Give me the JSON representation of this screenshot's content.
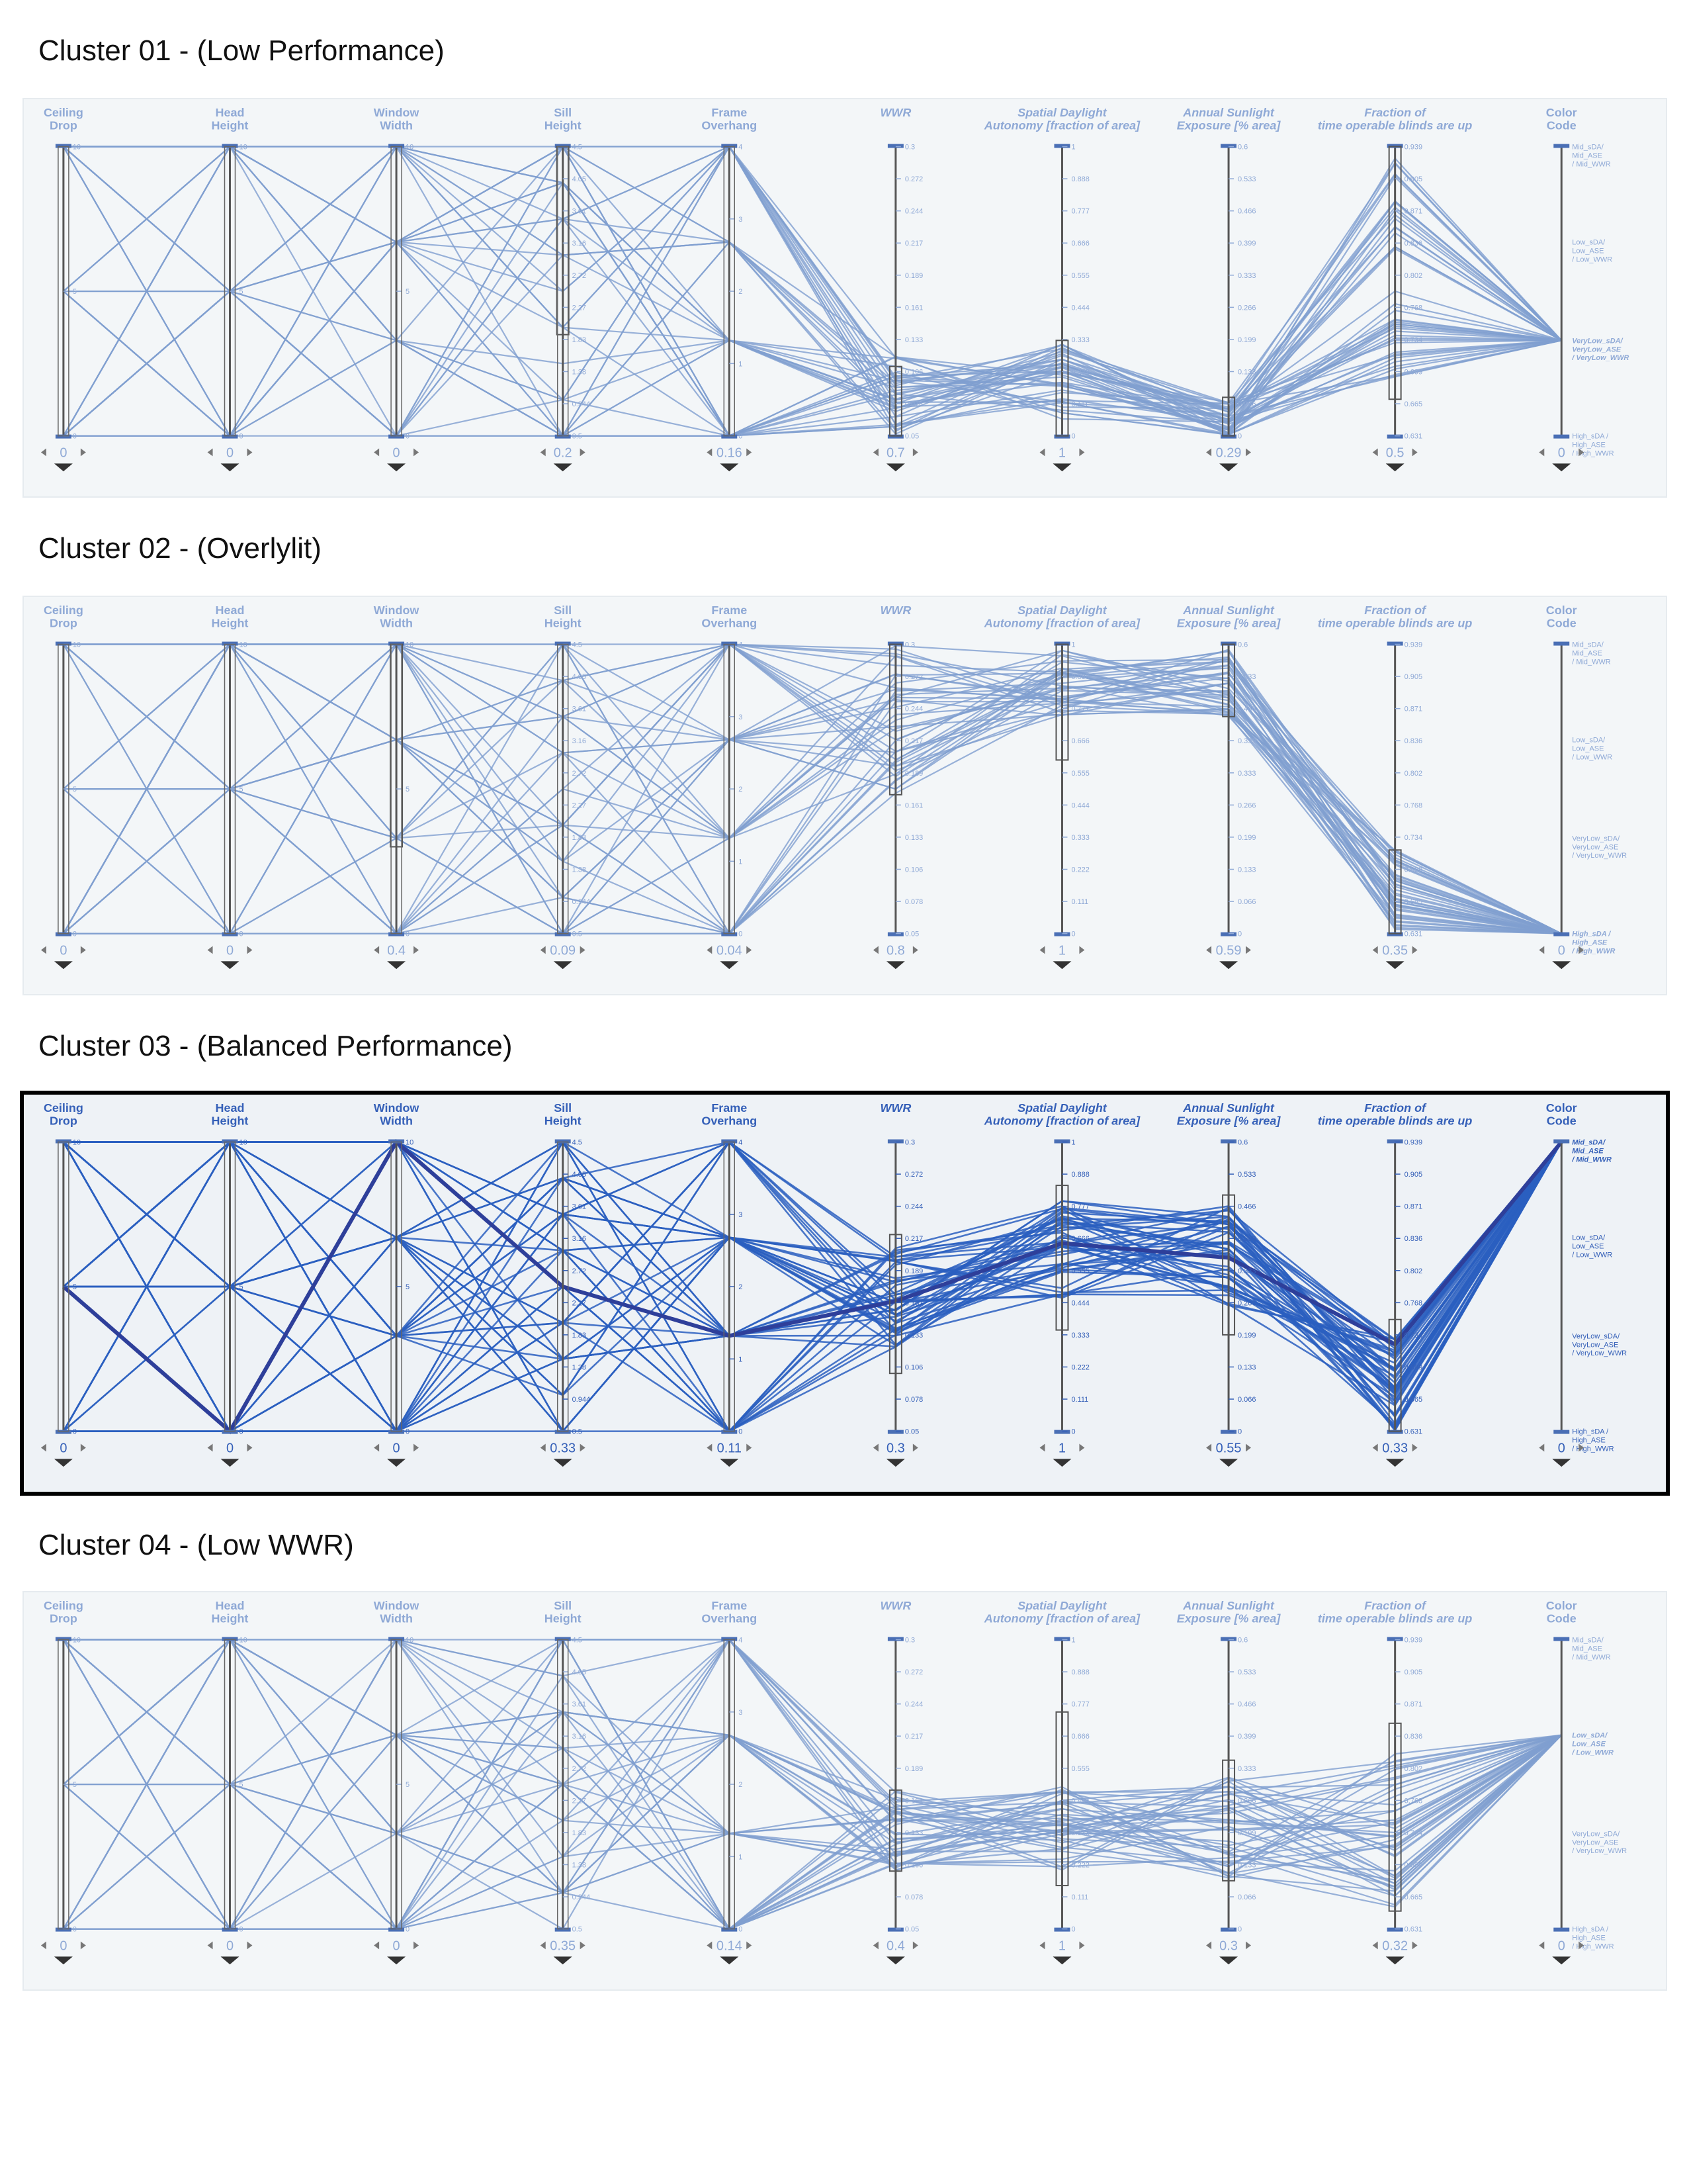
{
  "colors": {
    "line_faded": "#7f9fd0",
    "line_active": "#2a5fbf",
    "line_highlight": "#2e3f9a",
    "axis": "#4a6fb5",
    "axis_text_faded": "#8fa9d6",
    "axis_text_active": "#3560b8"
  },
  "axes": [
    {
      "key": "ceiling_drop",
      "title": [
        "Ceiling",
        "Drop"
      ],
      "italic": false,
      "ticks": [
        "0",
        "5",
        "10"
      ]
    },
    {
      "key": "head_height",
      "title": [
        "Head",
        "Height"
      ],
      "italic": false,
      "ticks": [
        "0",
        "5",
        "10"
      ]
    },
    {
      "key": "window_width",
      "title": [
        "Window",
        "Width"
      ],
      "italic": false,
      "ticks": [
        "0",
        "5",
        "10"
      ]
    },
    {
      "key": "sill_height",
      "title": [
        "Sill",
        "Height"
      ],
      "italic": false,
      "ticks": [
        "0.5",
        "0.944",
        "1.38",
        "1.83",
        "2.27",
        "2.72",
        "3.16",
        "3.61",
        "4.05",
        "4.5"
      ]
    },
    {
      "key": "frame_overhang",
      "title": [
        "Frame",
        "Overhang"
      ],
      "italic": false,
      "ticks": [
        "0",
        "1",
        "2",
        "3",
        "4"
      ]
    },
    {
      "key": "wwr",
      "title": [
        "WWR",
        ""
      ],
      "italic": true,
      "ticks": [
        "0.05",
        "0.078",
        "0.106",
        "0.133",
        "0.161",
        "0.189",
        "0.217",
        "0.244",
        "0.272",
        "0.3"
      ]
    },
    {
      "key": "sda",
      "title": [
        "Spatial Daylight",
        "Autonomy [fraction of area]"
      ],
      "italic": true,
      "ticks": [
        "0",
        "0.111",
        "0.222",
        "0.333",
        "0.444",
        "0.555",
        "0.666",
        "0.777",
        "0.888",
        "1"
      ]
    },
    {
      "key": "ase",
      "title": [
        "Annual Sunlight",
        "Exposure [% area]"
      ],
      "italic": true,
      "ticks": [
        "0",
        "0.066",
        "0.133",
        "0.199",
        "0.266",
        "0.333",
        "0.399",
        "0.466",
        "0.533",
        "0.6"
      ]
    },
    {
      "key": "blinds",
      "title": [
        "Fraction of",
        "time operable blinds are up"
      ],
      "italic": true,
      "ticks": [
        "0.631",
        "0.665",
        "0.699",
        "0.734",
        "0.768",
        "0.802",
        "0.836",
        "0.871",
        "0.905",
        "0.939"
      ]
    },
    {
      "key": "color_code",
      "title": [
        "Color",
        "Code"
      ],
      "italic": false,
      "ticks": []
    }
  ],
  "color_code_labels": [
    [
      "Mid_sDA/",
      "Mid_ASE",
      "/ Mid_WWR"
    ],
    [
      "Low_sDA/",
      "Low_ASE",
      "/ Low_WWR"
    ],
    [
      "VeryLow_sDA/",
      "VeryLow_ASE",
      "/ VeryLow_WWR"
    ],
    [
      "High_sDA /",
      "High_ASE",
      "/ High_WWR"
    ]
  ],
  "chart_data": [
    {
      "type": "parallel-coordinates",
      "title": "Cluster 01 - (Low Performance)",
      "selected": false,
      "highlight_code": 2,
      "range_values": [
        "0",
        "0",
        "0",
        "0.2",
        "0.16",
        "0.7",
        "1",
        "0.29",
        "0.5",
        "0"
      ],
      "brush": {
        "sill_height": [
          1.9,
          4.5
        ],
        "wwr": [
          0.05,
          0.11
        ],
        "sda": [
          0.0,
          0.33
        ],
        "ase": [
          0.0,
          0.08
        ],
        "blinds": [
          0.67,
          0.939
        ]
      },
      "lines": 44,
      "bands": {
        "wwr": [
          0.05,
          0.12
        ],
        "sda": [
          0.05,
          0.32
        ],
        "ase": [
          0.0,
          0.07
        ],
        "blinds": [
          0.68,
          0.93
        ],
        "color_code": 2
      }
    },
    {
      "type": "parallel-coordinates",
      "title": "Cluster 02 - (Overlylit)",
      "selected": false,
      "highlight_code": 3,
      "range_values": [
        "0",
        "0",
        "0.4",
        "0.09",
        "0.04",
        "0.8",
        "1",
        "0.59",
        "0.35",
        "0"
      ],
      "brush": {
        "window_width": [
          3,
          10
        ],
        "wwr": [
          0.17,
          0.3
        ],
        "sda": [
          0.6,
          1.0
        ],
        "ase": [
          0.45,
          0.6
        ],
        "blinds": [
          0.631,
          0.72
        ]
      },
      "lines": 42,
      "bands": {
        "wwr": [
          0.17,
          0.3
        ],
        "sda": [
          0.75,
          0.98
        ],
        "ase": [
          0.45,
          0.59
        ],
        "blinds": [
          0.631,
          0.72
        ],
        "color_code": 3
      }
    },
    {
      "type": "parallel-coordinates",
      "title": "Cluster 03 - (Balanced Performance)",
      "selected": true,
      "highlight_code": 0,
      "range_values": [
        "0",
        "0",
        "0",
        "0.33",
        "0.11",
        "0.3",
        "1",
        "0.55",
        "0.33",
        "0"
      ],
      "brush": {
        "wwr": [
          0.1,
          0.22
        ],
        "sda": [
          0.35,
          0.85
        ],
        "ase": [
          0.2,
          0.49
        ],
        "blinds": [
          0.631,
          0.75
        ]
      },
      "lines": 48,
      "bands": {
        "wwr": [
          0.12,
          0.21
        ],
        "sda": [
          0.45,
          0.8
        ],
        "ase": [
          0.25,
          0.47
        ],
        "blinds": [
          0.631,
          0.73
        ],
        "color_code": 0
      }
    },
    {
      "type": "parallel-coordinates",
      "title": "Cluster 04 - (Low WWR)",
      "selected": false,
      "highlight_code": 1,
      "range_values": [
        "0",
        "0",
        "0",
        "0.35",
        "0.14",
        "0.4",
        "1",
        "0.3",
        "0.32",
        "0"
      ],
      "brush": {
        "wwr": [
          0.1,
          0.17
        ],
        "sda": [
          0.15,
          0.75
        ],
        "ase": [
          0.1,
          0.35
        ],
        "blinds": [
          0.65,
          0.85
        ]
      },
      "lines": 46,
      "bands": {
        "wwr": [
          0.1,
          0.17
        ],
        "sda": [
          0.2,
          0.5
        ],
        "ase": [
          0.1,
          0.33
        ],
        "blinds": [
          0.65,
          0.82
        ],
        "color_code": 1
      }
    }
  ]
}
